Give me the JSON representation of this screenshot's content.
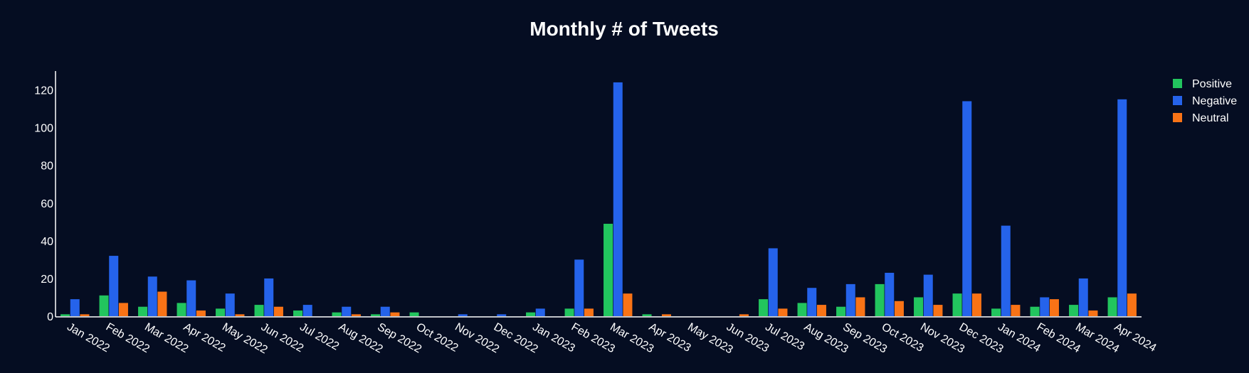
{
  "chart_data": {
    "type": "bar",
    "title": "Monthly # of Tweets",
    "xlabel": "",
    "ylabel": "",
    "ylim": [
      0,
      130
    ],
    "yticks": [
      0,
      20,
      40,
      60,
      80,
      100,
      120
    ],
    "grid": false,
    "legend_position": "top-right",
    "categories": [
      "Jan 2022",
      "Feb 2022",
      "Mar 2022",
      "Apr 2022",
      "May 2022",
      "Jun 2022",
      "Jul 2022",
      "Aug 2022",
      "Sep 2022",
      "Oct 2022",
      "Nov 2022",
      "Dec 2022",
      "Jan 2023",
      "Feb 2023",
      "Mar 2023",
      "Apr 2023",
      "May 2023",
      "Jun 2023",
      "Jul 2023",
      "Aug 2023",
      "Sep 2023",
      "Oct 2023",
      "Nov 2023",
      "Dec 2023",
      "Jan 2024",
      "Feb 2024",
      "Mar 2024",
      "Apr 2024"
    ],
    "series": [
      {
        "name": "Positive",
        "color": "#22c55e",
        "values": [
          1,
          11,
          5,
          7,
          4,
          6,
          3,
          2,
          1,
          2,
          0,
          0,
          2,
          4,
          49,
          1,
          0,
          0,
          9,
          7,
          5,
          17,
          10,
          12,
          4,
          5,
          6,
          10
        ]
      },
      {
        "name": "Negative",
        "color": "#2563eb",
        "values": [
          9,
          32,
          21,
          19,
          12,
          20,
          6,
          5,
          5,
          0,
          1,
          1,
          4,
          30,
          124,
          0,
          0,
          0,
          36,
          15,
          17,
          23,
          22,
          114,
          48,
          10,
          20,
          115
        ]
      },
      {
        "name": "Neutral",
        "color": "#f97316",
        "values": [
          1,
          7,
          13,
          3,
          1,
          5,
          0,
          1,
          2,
          0,
          0,
          0,
          0,
          4,
          12,
          1,
          0,
          1,
          4,
          6,
          10,
          8,
          6,
          12,
          6,
          9,
          3,
          12
        ]
      }
    ]
  }
}
